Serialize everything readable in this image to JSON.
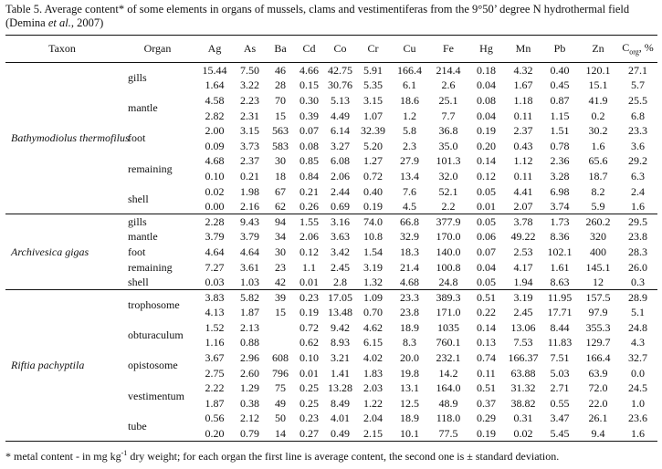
{
  "caption_prefix": "Table 5. Average content* of some elements in organs of mussels, clams and vestimentiferas from the 9°50’ degree N hydrothermal field (Demina ",
  "caption_italic": "et al.",
  "caption_suffix": ", 2007)",
  "headers": {
    "taxon": "Taxon",
    "organ": "Organ",
    "elements": [
      "Ag",
      "As",
      "Ba",
      "Cd",
      "Co",
      "Cr",
      "Cu",
      "Fe",
      "Hg",
      "Mn",
      "Pb",
      "Zn"
    ],
    "corg_main": "C",
    "corg_sub": "org",
    "corg_unit": ", %"
  },
  "groups": [
    {
      "taxon": "Bathymodiolus thermofilus",
      "organs": [
        {
          "name": "gills",
          "rows": [
            [
              "15.44",
              "7.50",
              "46",
              "4.66",
              "42.75",
              "5.91",
              "166.4",
              "214.4",
              "0.18",
              "4.32",
              "0.40",
              "120.1",
              "27.1"
            ],
            [
              "1.64",
              "3.22",
              "28",
              "0.15",
              "30.76",
              "5.35",
              "6.1",
              "2.6",
              "0.04",
              "1.67",
              "0.45",
              "15.1",
              "5.7"
            ]
          ]
        },
        {
          "name": "mantle",
          "rows": [
            [
              "4.58",
              "2.23",
              "70",
              "0.30",
              "5.13",
              "3.15",
              "18.6",
              "25.1",
              "0.08",
              "1.18",
              "0.87",
              "41.9",
              "25.5"
            ],
            [
              "2.82",
              "2.31",
              "15",
              "0.39",
              "4.49",
              "1.07",
              "1.2",
              "7.7",
              "0.04",
              "0.11",
              "1.15",
              "0.2",
              "6.8"
            ]
          ]
        },
        {
          "name": "foot",
          "rows": [
            [
              "2.00",
              "3.15",
              "563",
              "0.07",
              "6.14",
              "32.39",
              "5.8",
              "36.8",
              "0.19",
              "2.37",
              "1.51",
              "30.2",
              "23.3"
            ],
            [
              "0.09",
              "3.73",
              "583",
              "0.08",
              "3.27",
              "5.20",
              "2.3",
              "35.0",
              "0.20",
              "0.43",
              "0.78",
              "1.6",
              "3.6"
            ]
          ]
        },
        {
          "name": "remaining",
          "rows": [
            [
              "4.68",
              "2.37",
              "30",
              "0.85",
              "6.08",
              "1.27",
              "27.9",
              "101.3",
              "0.14",
              "1.12",
              "2.36",
              "65.6",
              "29.2"
            ],
            [
              "0.10",
              "0.21",
              "18",
              "0.84",
              "2.06",
              "0.72",
              "13.4",
              "32.0",
              "0.12",
              "0.11",
              "3.28",
              "18.7",
              "6.3"
            ]
          ]
        },
        {
          "name": "shell",
          "rows": [
            [
              "0.02",
              "1.98",
              "67",
              "0.21",
              "2.44",
              "0.40",
              "7.6",
              "52.1",
              "0.05",
              "4.41",
              "6.98",
              "8.2",
              "2.4"
            ],
            [
              "0.00",
              "2.16",
              "62",
              "0.26",
              "0.69",
              "0.19",
              "4.5",
              "2.2",
              "0.01",
              "2.07",
              "3.74",
              "5.9",
              "1.6"
            ]
          ]
        }
      ]
    },
    {
      "taxon": "Archivesica gigas",
      "organs": [
        {
          "name": "gills",
          "rows": [
            [
              "2.28",
              "9.43",
              "94",
              "1.55",
              "3.16",
              "74.0",
              "66.8",
              "377.9",
              "0.05",
              "3.78",
              "1.73",
              "260.2",
              "29.5"
            ]
          ]
        },
        {
          "name": "mantle",
          "rows": [
            [
              "3.79",
              "3.79",
              "34",
              "2.06",
              "3.63",
              "10.8",
              "32.9",
              "170.0",
              "0.06",
              "49.22",
              "8.36",
              "320",
              "23.8"
            ]
          ]
        },
        {
          "name": "foot",
          "rows": [
            [
              "4.64",
              "4.64",
              "30",
              "0.12",
              "3.42",
              "1.54",
              "18.3",
              "140.0",
              "0.07",
              "2.53",
              "102.1",
              "400",
              "28.3"
            ]
          ]
        },
        {
          "name": "remaining",
          "rows": [
            [
              "7.27",
              "3.61",
              "23",
              "1.1",
              "2.45",
              "3.19",
              "21.4",
              "100.8",
              "0.04",
              "4.17",
              "1.61",
              "145.1",
              "26.0"
            ]
          ]
        },
        {
          "name": "shell",
          "rows": [
            [
              "0.03",
              "1.03",
              "42",
              "0.01",
              "2.8",
              "1.32",
              "4.68",
              "24.8",
              "0.05",
              "1.94",
              "8.63",
              "12",
              "0.3"
            ]
          ]
        }
      ]
    },
    {
      "taxon": "Riftia pachyptila",
      "organs": [
        {
          "name": "trophosome",
          "rows": [
            [
              "3.83",
              "5.82",
              "39",
              "0.23",
              "17.05",
              "1.09",
              "23.3",
              "389.3",
              "0.51",
              "3.19",
              "11.95",
              "157.5",
              "28.9"
            ],
            [
              "4.13",
              "1.87",
              "15",
              "0.19",
              "13.48",
              "0.70",
              "23.8",
              "171.0",
              "0.22",
              "2.45",
              "17.71",
              "97.9",
              "5.1"
            ]
          ]
        },
        {
          "name": "obturaculum",
          "rows": [
            [
              "1.52",
              "2.13",
              "",
              "0.72",
              "9.42",
              "4.62",
              "18.9",
              "1035",
              "0.14",
              "13.06",
              "8.44",
              "355.3",
              "24.8"
            ],
            [
              "1.16",
              "0.88",
              "",
              "0.62",
              "8.93",
              "6.15",
              "8.3",
              "760.1",
              "0.13",
              "7.53",
              "11.83",
              "129.7",
              "4.3"
            ]
          ]
        },
        {
          "name": "opistosome",
          "rows": [
            [
              "3.67",
              "2.96",
              "608",
              "0.10",
              "3.21",
              "4.02",
              "20.0",
              "232.1",
              "0.74",
              "166.37",
              "7.51",
              "166.4",
              "32.7"
            ],
            [
              "2.75",
              "2.60",
              "796",
              "0.01",
              "1.41",
              "1.83",
              "19.8",
              "14.2",
              "0.11",
              "63.88",
              "5.03",
              "63.9",
              "0.0"
            ]
          ]
        },
        {
          "name": "vestimentum",
          "rows": [
            [
              "2.22",
              "1.29",
              "75",
              "0.25",
              "13.28",
              "2.03",
              "13.1",
              "164.0",
              "0.51",
              "31.32",
              "2.71",
              "72.0",
              "24.5"
            ],
            [
              "1.87",
              "0.38",
              "49",
              "0.25",
              "8.49",
              "1.22",
              "12.5",
              "48.9",
              "0.37",
              "38.82",
              "0.55",
              "22.0",
              "1.0"
            ]
          ]
        },
        {
          "name": "tube",
          "rows": [
            [
              "0.56",
              "2.12",
              "50",
              "0.23",
              "4.01",
              "2.04",
              "18.9",
              "118.0",
              "0.29",
              "0.31",
              "3.47",
              "26.1",
              "23.6"
            ],
            [
              "0.20",
              "0.79",
              "14",
              "0.27",
              "0.49",
              "2.15",
              "10.1",
              "77.5",
              "0.19",
              "0.02",
              "5.45",
              "9.4",
              "1.6"
            ]
          ]
        }
      ]
    }
  ],
  "footnote_a": "* metal content - in mg kg",
  "footnote_sup": "-1",
  "footnote_b": " dry weight; for each organ the first line is average content, the second one is ± standard deviation."
}
